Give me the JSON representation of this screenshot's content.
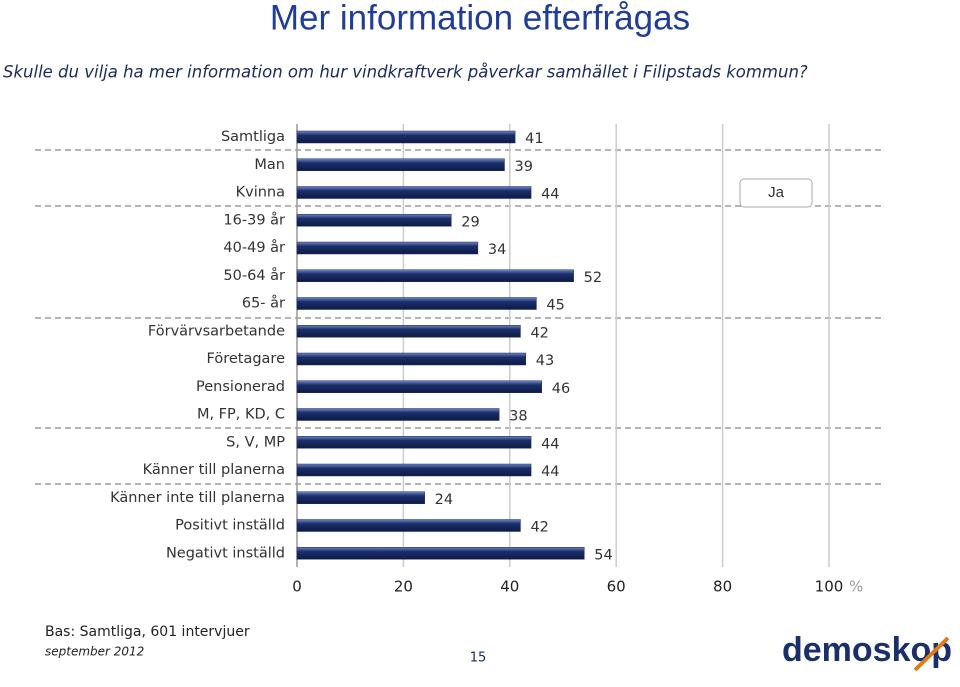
{
  "title": "Mer information efterfrågas",
  "subtitle": "Skulle du vilja ha mer information om hur vindkraftverk påverkar samhället i Filipstads kommun?",
  "chart_data": {
    "type": "bar",
    "orientation": "horizontal",
    "categories": [
      "Samtliga",
      "Man",
      "Kvinna",
      "16-39 år",
      "40-49 år",
      "50-64 år",
      "65- år",
      "Förvärvsarbetande",
      "Företagare",
      "Pensionerad",
      "M, FP, KD, C",
      "S, V, MP",
      "Känner till planerna",
      "Känner inte till planerna",
      "Positivt inställd",
      "Negativt inställd"
    ],
    "series": [
      {
        "name": "Ja",
        "color": "#1b2f6b",
        "values": [
          41,
          39,
          44,
          29,
          34,
          52,
          45,
          42,
          43,
          46,
          38,
          44,
          44,
          24,
          42,
          54
        ]
      }
    ],
    "xlim": [
      0,
      100
    ],
    "xticks": [
      0,
      20,
      40,
      60,
      80,
      100
    ],
    "xlabel": "%",
    "grid": true,
    "legend": "top-right"
  },
  "footer": {
    "base": "Bas: Samtliga, 601 intervjuer",
    "date": "september 2012",
    "page": "15",
    "logo": "demoskop"
  }
}
